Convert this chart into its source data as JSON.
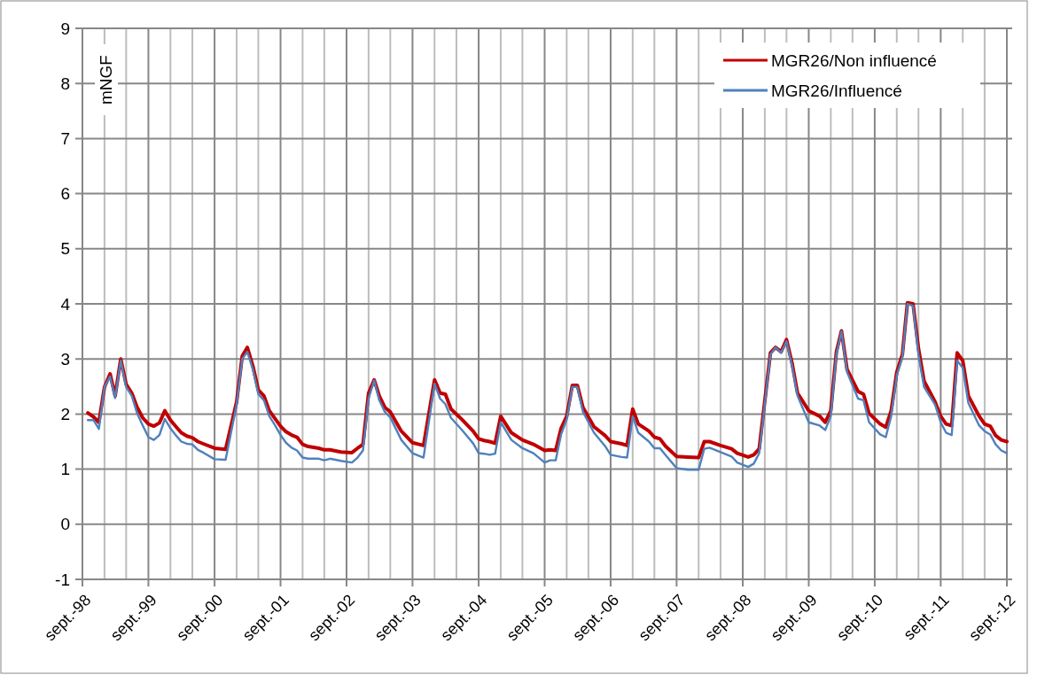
{
  "chart_data": {
    "type": "line",
    "ylabel": "mNGF",
    "x": [
      "1998-10",
      "1998-11",
      "1998-12",
      "1999-01",
      "1999-02",
      "1999-03",
      "1999-04",
      "1999-05",
      "1999-06",
      "1999-07",
      "1999-08",
      "1999-09",
      "1999-10",
      "1999-11",
      "1999-12",
      "2000-01",
      "2000-02",
      "2000-03",
      "2000-04",
      "2000-05",
      "2000-06",
      "2000-07",
      "2000-09",
      "2000-11",
      "2001-01",
      "2001-02",
      "2001-03",
      "2001-04",
      "2001-05",
      "2001-06",
      "2001-07",
      "2001-08",
      "2001-09",
      "2001-10",
      "2001-11",
      "2001-12",
      "2002-01",
      "2002-02",
      "2002-04",
      "2002-05",
      "2002-06",
      "2002-08",
      "2002-10",
      "2002-11",
      "2002-12",
      "2003-01",
      "2003-02",
      "2003-03",
      "2003-04",
      "2003-05",
      "2003-07",
      "2003-09",
      "2003-11",
      "2004-01",
      "2004-02",
      "2004-03",
      "2004-04",
      "2004-06",
      "2004-08",
      "2004-09",
      "2004-10",
      "2004-11",
      "2004-12",
      "2005-01",
      "2005-03",
      "2005-05",
      "2005-07",
      "2005-09",
      "2005-10",
      "2005-11",
      "2005-12",
      "2006-01",
      "2006-02",
      "2006-03",
      "2006-04",
      "2006-06",
      "2006-08",
      "2006-09",
      "2006-11",
      "2006-12",
      "2007-01",
      "2007-02",
      "2007-04",
      "2007-05",
      "2007-06",
      "2007-07",
      "2007-09",
      "2007-11",
      "2008-01",
      "2008-02",
      "2008-03",
      "2008-05",
      "2008-07",
      "2008-08",
      "2008-10",
      "2008-11",
      "2008-12",
      "2009-02",
      "2009-03",
      "2009-04",
      "2009-05",
      "2009-06",
      "2009-07",
      "2009-09",
      "2009-11",
      "2009-12",
      "2010-01",
      "2010-02",
      "2010-03",
      "2010-04",
      "2010-06",
      "2010-07",
      "2010-08",
      "2010-10",
      "2010-11",
      "2010-12",
      "2011-01",
      "2011-02",
      "2011-03",
      "2011-04",
      "2011-05",
      "2011-06",
      "2011-08",
      "2011-09",
      "2011-10",
      "2011-11",
      "2011-12",
      "2012-01",
      "2012-02",
      "2012-04",
      "2012-05",
      "2012-06",
      "2012-07",
      "2012-08",
      "2012-09"
    ],
    "series": [
      {
        "name": "MGR26/Non influencé",
        "color": "#c00000",
        "values": [
          2.02,
          1.95,
          1.85,
          2.49,
          2.73,
          2.33,
          3.0,
          2.54,
          2.38,
          2.12,
          1.93,
          1.82,
          1.78,
          1.84,
          2.06,
          1.89,
          1.77,
          1.66,
          1.6,
          1.57,
          1.5,
          1.46,
          1.38,
          1.36,
          2.22,
          3.05,
          3.21,
          2.87,
          2.44,
          2.33,
          2.06,
          1.92,
          1.78,
          1.68,
          1.62,
          1.58,
          1.45,
          1.41,
          1.38,
          1.35,
          1.35,
          1.31,
          1.3,
          1.38,
          1.45,
          2.38,
          2.62,
          2.33,
          2.12,
          2.04,
          1.69,
          1.48,
          1.43,
          2.62,
          2.38,
          2.36,
          2.09,
          1.9,
          1.69,
          1.55,
          1.52,
          1.5,
          1.47,
          1.96,
          1.66,
          1.53,
          1.45,
          1.34,
          1.35,
          1.34,
          1.74,
          1.96,
          2.52,
          2.52,
          2.12,
          1.77,
          1.61,
          1.5,
          1.46,
          1.43,
          2.09,
          1.82,
          1.69,
          1.58,
          1.55,
          1.42,
          1.23,
          1.22,
          1.21,
          1.5,
          1.5,
          1.43,
          1.37,
          1.29,
          1.22,
          1.26,
          1.37,
          3.11,
          3.21,
          3.13,
          3.35,
          2.92,
          2.38,
          2.06,
          1.96,
          1.85,
          2.06,
          3.13,
          3.51,
          2.81,
          2.41,
          2.36,
          2.01,
          1.82,
          1.76,
          2.06,
          2.76,
          3.08,
          4.02,
          4.0,
          3.19,
          2.6,
          2.22,
          1.96,
          1.82,
          1.79,
          3.11,
          2.97,
          2.33,
          1.96,
          1.82,
          1.78,
          1.61,
          1.53,
          1.5
        ]
      },
      {
        "name": "MGR26/Influencé",
        "color": "#4f81bd",
        "values": [
          1.89,
          1.89,
          1.73,
          2.49,
          2.68,
          2.29,
          2.97,
          2.49,
          2.33,
          2.01,
          1.79,
          1.58,
          1.53,
          1.62,
          1.91,
          1.74,
          1.61,
          1.5,
          1.46,
          1.45,
          1.35,
          1.3,
          1.18,
          1.17,
          2.17,
          3.0,
          3.13,
          2.81,
          2.36,
          2.25,
          1.96,
          1.8,
          1.62,
          1.48,
          1.39,
          1.34,
          1.21,
          1.19,
          1.19,
          1.16,
          1.19,
          1.15,
          1.12,
          1.21,
          1.34,
          2.28,
          2.61,
          2.25,
          2.04,
          1.94,
          1.53,
          1.29,
          1.21,
          2.55,
          2.28,
          2.18,
          1.93,
          1.71,
          1.47,
          1.29,
          1.28,
          1.26,
          1.28,
          1.85,
          1.53,
          1.38,
          1.29,
          1.12,
          1.16,
          1.16,
          1.63,
          1.9,
          2.49,
          2.49,
          2.04,
          1.66,
          1.42,
          1.26,
          1.22,
          1.21,
          1.96,
          1.66,
          1.5,
          1.38,
          1.38,
          1.26,
          1.02,
          0.99,
          0.99,
          1.37,
          1.39,
          1.31,
          1.23,
          1.12,
          1.04,
          1.1,
          1.29,
          3.08,
          3.21,
          3.11,
          3.32,
          2.87,
          2.33,
          1.85,
          1.79,
          1.71,
          1.96,
          3.08,
          3.5,
          2.76,
          2.28,
          2.25,
          1.85,
          1.63,
          1.58,
          1.96,
          2.7,
          3.03,
          4.0,
          3.96,
          3.08,
          2.49,
          2.17,
          1.85,
          1.66,
          1.62,
          2.97,
          2.84,
          2.2,
          1.79,
          1.69,
          1.63,
          1.45,
          1.34,
          1.29
        ]
      }
    ],
    "xlim": [
      "1998-09",
      "2012-09"
    ],
    "xticks": [
      {
        "value": "1998-09",
        "label": "sept.-98"
      },
      {
        "value": "1999-01",
        "label": null
      },
      {
        "value": "1999-05",
        "label": null
      },
      {
        "value": "1999-09",
        "label": "sept.-99"
      },
      {
        "value": "2000-01",
        "label": null
      },
      {
        "value": "2000-05",
        "label": null
      },
      {
        "value": "2000-09",
        "label": "sept.-00"
      },
      {
        "value": "2001-01",
        "label": null
      },
      {
        "value": "2001-05",
        "label": null
      },
      {
        "value": "2001-09",
        "label": "sept.-01"
      },
      {
        "value": "2002-01",
        "label": null
      },
      {
        "value": "2002-05",
        "label": null
      },
      {
        "value": "2002-09",
        "label": "sept.-02"
      },
      {
        "value": "2003-01",
        "label": null
      },
      {
        "value": "2003-05",
        "label": null
      },
      {
        "value": "2003-09",
        "label": "sept.-03"
      },
      {
        "value": "2004-01",
        "label": null
      },
      {
        "value": "2004-05",
        "label": null
      },
      {
        "value": "2004-09",
        "label": "sept.-04"
      },
      {
        "value": "2005-01",
        "label": null
      },
      {
        "value": "2005-05",
        "label": null
      },
      {
        "value": "2005-09",
        "label": "sept.-05"
      },
      {
        "value": "2006-01",
        "label": null
      },
      {
        "value": "2006-05",
        "label": null
      },
      {
        "value": "2006-09",
        "label": "sept.-06"
      },
      {
        "value": "2007-01",
        "label": null
      },
      {
        "value": "2007-05",
        "label": null
      },
      {
        "value": "2007-09",
        "label": "sept.-07"
      },
      {
        "value": "2008-01",
        "label": null
      },
      {
        "value": "2008-05",
        "label": null
      },
      {
        "value": "2008-09",
        "label": "sept.-08"
      },
      {
        "value": "2009-01",
        "label": null
      },
      {
        "value": "2009-05",
        "label": null
      },
      {
        "value": "2009-09",
        "label": "sept.-09"
      },
      {
        "value": "2010-01",
        "label": null
      },
      {
        "value": "2010-05",
        "label": null
      },
      {
        "value": "2010-09",
        "label": "sept.-10"
      },
      {
        "value": "2011-01",
        "label": null
      },
      {
        "value": "2011-05",
        "label": null
      },
      {
        "value": "2011-09",
        "label": "sept.-11"
      },
      {
        "value": "2012-01",
        "label": null
      },
      {
        "value": "2012-05",
        "label": null
      },
      {
        "value": "2012-09",
        "label": "sept.-12"
      }
    ],
    "ylim": [
      -1,
      9
    ],
    "yticks": [
      -1,
      0,
      1,
      2,
      3,
      4,
      5,
      6,
      7,
      8,
      9
    ],
    "grid": true,
    "legend": "top right",
    "marker": "none",
    "line_style": "solid"
  }
}
